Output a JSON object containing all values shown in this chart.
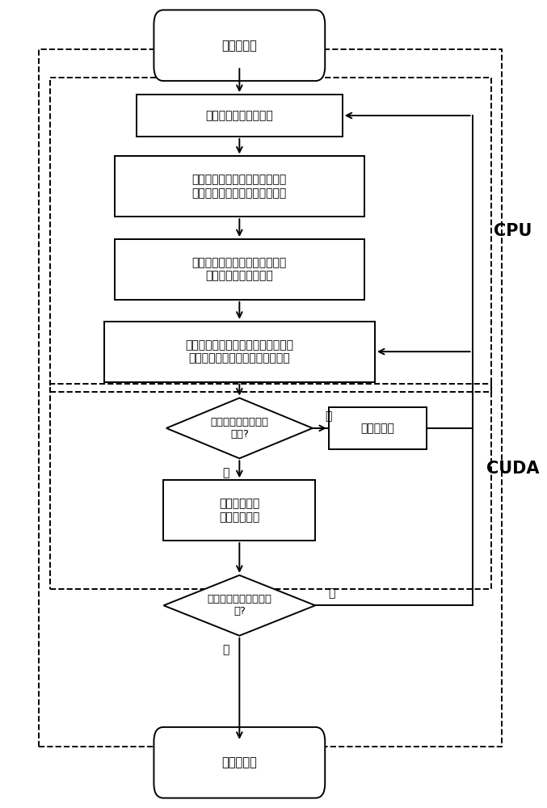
{
  "bg_color": "#ffffff",
  "line_color": "#000000",
  "start_text": "开启吸引器",
  "box1_text": "探测吸引器的有效范围",
  "box2_text": "为该有效范围划分不同的区域，\n并为不同的区域设置不同的吸力",
  "box3_text": "将粒子系统数据和吸引力的区域\n相关数据拷贝到显存中",
  "box4_text": "计算该粒子所受合力及加速度，由此\n计算该粒子下一时刻的位置和速度",
  "diamond1_text": "该有效范围内还有粒\n子么?",
  "box_next_text": "下一个粒子",
  "box5_text": "暂时停止吸血\n进入休眠模式",
  "diamond2_text": "是否移动了吸引器的位\n置?",
  "end_text": "关闭吸引器",
  "yes_text": "是",
  "no_text": "否",
  "cpu_text": "CPU",
  "cuda_text": "CUDA"
}
